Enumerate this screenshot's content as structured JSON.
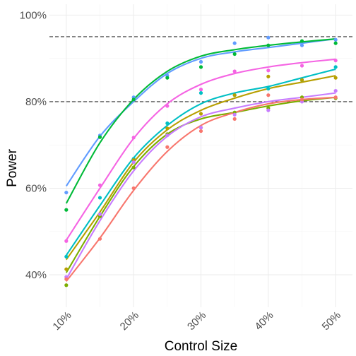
{
  "chart_data": {
    "type": "scatter",
    "xlabel": "Control Size",
    "ylabel": "Power",
    "x": [
      10,
      15,
      20,
      25,
      30,
      35,
      40,
      45,
      50
    ],
    "x_ticks": [
      10,
      20,
      30,
      40,
      50
    ],
    "x_tick_labels": [
      "10%",
      "20%",
      "30%",
      "40%",
      "50%"
    ],
    "y_ticks": [
      40,
      60,
      80,
      100
    ],
    "y_tick_labels": [
      "40%",
      "60%",
      "80%",
      "100%"
    ],
    "xlim": [
      7.5,
      52.5
    ],
    "ylim": [
      32.5,
      102.5
    ],
    "reference_lines": [
      95,
      80
    ],
    "grid": true,
    "legend": "none",
    "series": [
      {
        "color": "#619CFF",
        "points": [
          [
            10,
            59
          ],
          [
            15,
            72.2
          ],
          [
            20,
            81
          ],
          [
            25,
            86
          ],
          [
            30,
            89.2
          ],
          [
            35,
            93.5
          ],
          [
            40,
            94.8
          ],
          [
            45,
            93
          ],
          [
            50,
            94.3
          ]
        ],
        "curve": [
          60.5,
          72,
          80,
          86.5,
          90,
          91.5,
          92.5,
          93.5,
          94.5
        ]
      },
      {
        "color": "#00BA38",
        "points": [
          [
            10,
            55
          ],
          [
            15,
            71.8
          ],
          [
            20,
            80.5
          ],
          [
            25,
            85.5
          ],
          [
            30,
            88
          ],
          [
            35,
            91
          ],
          [
            40,
            93
          ],
          [
            45,
            94
          ],
          [
            50,
            93.5
          ]
        ],
        "curve": [
          56.5,
          70.5,
          80.5,
          87,
          90.5,
          92,
          93,
          93.8,
          94.5
        ]
      },
      {
        "color": "#F564E3",
        "points": [
          [
            10,
            47.8
          ],
          [
            15,
            60.7
          ],
          [
            20,
            71.7
          ],
          [
            25,
            79
          ],
          [
            30,
            82.8
          ],
          [
            35,
            87
          ],
          [
            40,
            87.2
          ],
          [
            45,
            88.3
          ],
          [
            50,
            89.5
          ]
        ],
        "curve": [
          48,
          60,
          71.5,
          79.5,
          84,
          86.5,
          88,
          89,
          89.8
        ]
      },
      {
        "color": "#00BFC4",
        "points": [
          [
            10,
            44.2
          ],
          [
            15,
            57.8
          ],
          [
            20,
            66.8
          ],
          [
            25,
            75
          ],
          [
            30,
            82
          ],
          [
            35,
            81.5
          ],
          [
            40,
            83
          ],
          [
            45,
            85
          ],
          [
            50,
            88
          ]
        ],
        "curve": [
          44.5,
          56,
          67,
          74.5,
          79.5,
          82,
          83.5,
          85.5,
          87.5
        ]
      },
      {
        "color": "#B79F00",
        "points": [
          [
            10,
            41.3
          ],
          [
            15,
            53.8
          ],
          [
            20,
            66.5
          ],
          [
            25,
            73.8
          ],
          [
            30,
            77.2
          ],
          [
            35,
            81.5
          ],
          [
            40,
            85.8
          ],
          [
            45,
            85
          ],
          [
            50,
            85.5
          ]
        ],
        "curve": [
          43.5,
          54.5,
          66,
          73.5,
          78,
          80.8,
          83,
          84.5,
          86
        ]
      },
      {
        "color": "#7CAE00",
        "points": [
          [
            10,
            37.6
          ],
          [
            15,
            53.5
          ],
          [
            20,
            64.8
          ],
          [
            25,
            72.5
          ],
          [
            30,
            74
          ],
          [
            35,
            77.5
          ],
          [
            40,
            78.5
          ],
          [
            45,
            81
          ],
          [
            50,
            80.8
          ]
        ],
        "curve": [
          40.5,
          53.5,
          65,
          72.5,
          76,
          77.5,
          79,
          80.2,
          81
        ]
      },
      {
        "color": "#C77CFF",
        "points": [
          [
            10,
            39.5
          ],
          [
            15,
            54
          ],
          [
            20,
            66
          ],
          [
            25,
            72.2
          ],
          [
            30,
            74
          ],
          [
            35,
            77
          ],
          [
            40,
            78
          ],
          [
            45,
            80
          ],
          [
            50,
            82.5
          ]
        ],
        "curve": [
          39,
          52.5,
          64,
          72,
          76.5,
          78.5,
          80,
          81,
          82
        ]
      },
      {
        "color": "#F8766D",
        "points": [
          [
            10,
            39
          ],
          [
            15,
            48.3
          ],
          [
            20,
            60
          ],
          [
            25,
            69.5
          ],
          [
            30,
            73.2
          ],
          [
            35,
            76
          ],
          [
            40,
            81.5
          ],
          [
            45,
            80.5
          ],
          [
            50,
            81
          ]
        ],
        "curve": [
          38.5,
          48.5,
          59.5,
          68.5,
          74.5,
          77.5,
          79.5,
          80.5,
          81
        ]
      }
    ]
  }
}
